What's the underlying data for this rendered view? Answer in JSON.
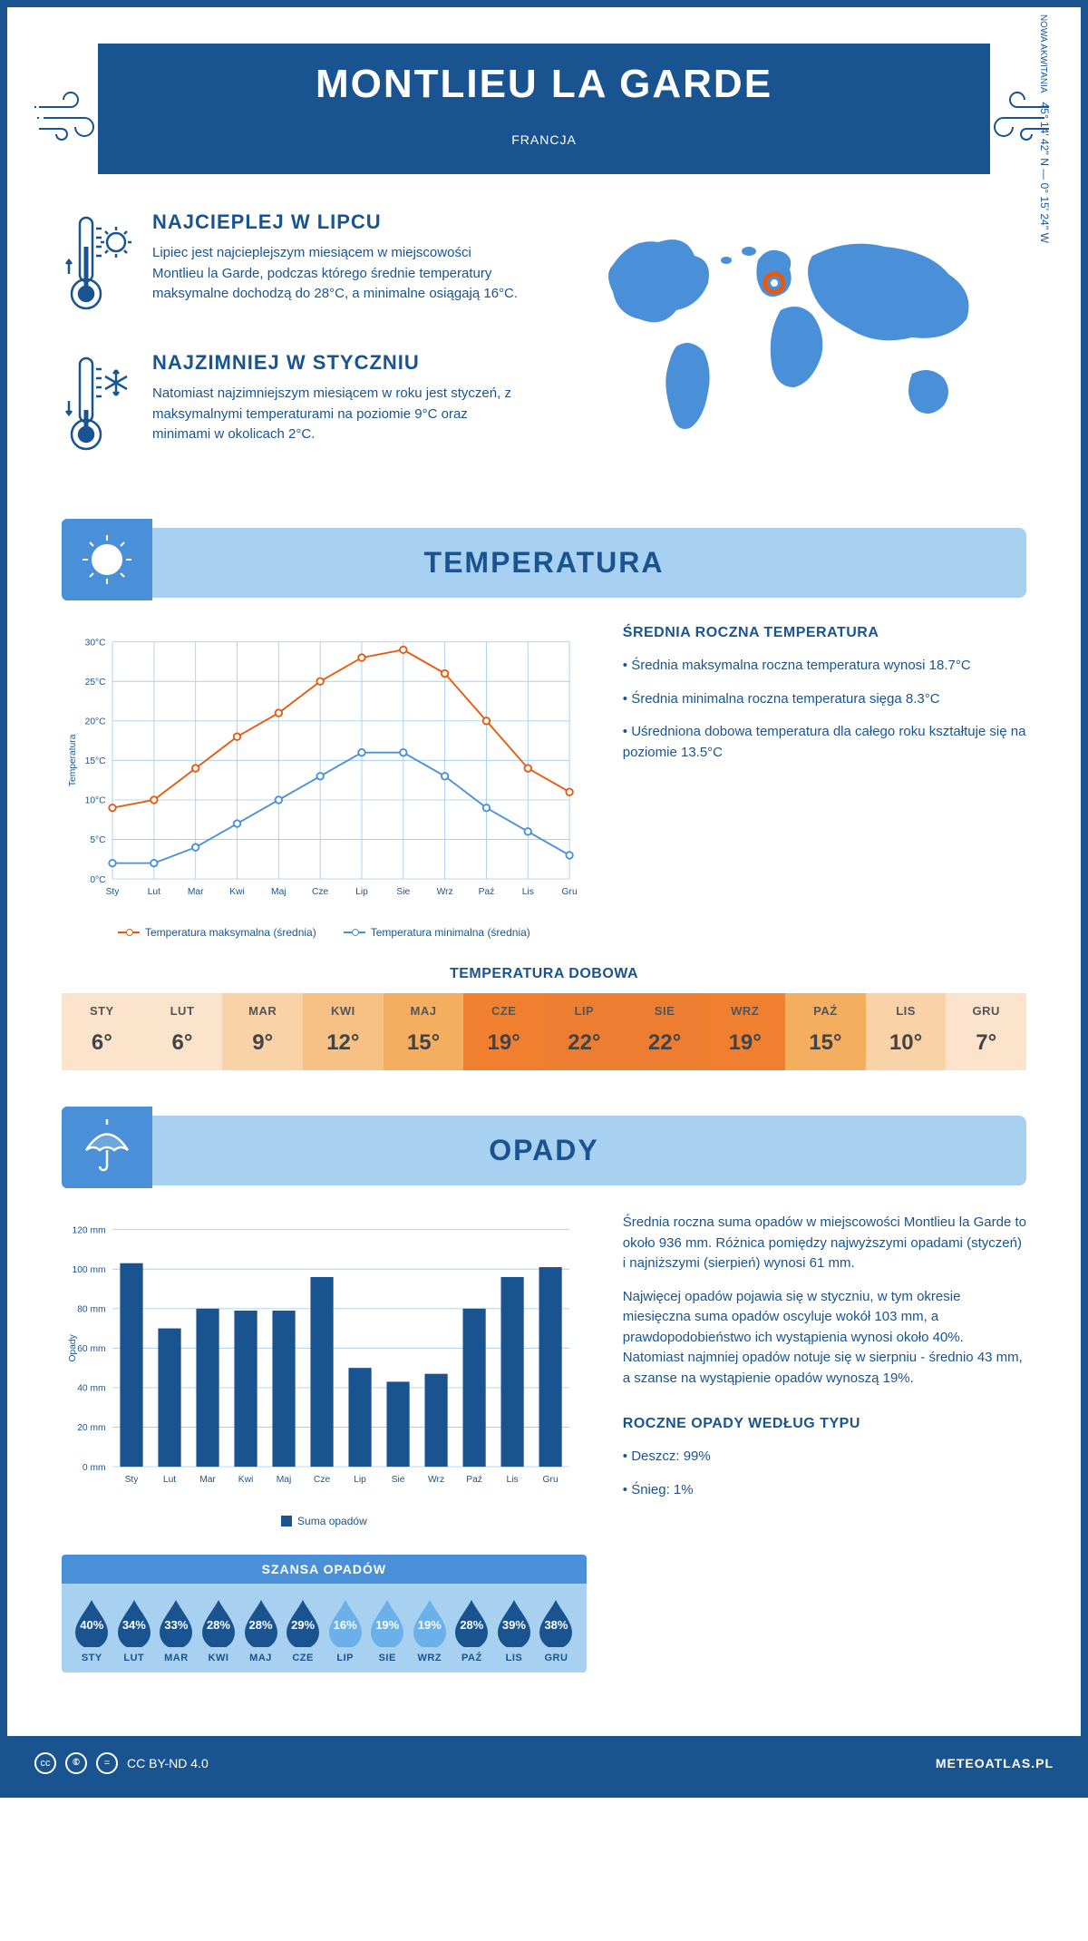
{
  "header": {
    "title": "MONTLIEU LA GARDE",
    "subtitle": "FRANCJA"
  },
  "coords": {
    "line1": "45° 14' 42'' N — 0° 15' 24'' W",
    "line2": "NOWA AKWITANIA"
  },
  "intro": {
    "hot": {
      "heading": "NAJCIEPLEJ W LIPCU",
      "text": "Lipiec jest najcieplejszym miesiącem w miejscowości Montlieu la Garde, podczas którego średnie temperatury maksymalne dochodzą do 28°C, a minimalne osiągają 16°C."
    },
    "cold": {
      "heading": "NAJZIMNIEJ W STYCZNIU",
      "text": "Natomiast najzimniejszym miesiącem w roku jest styczeń, z maksymalnymi temperaturami na poziomie 9°C oraz minimami w okolicach 2°C."
    }
  },
  "sections": {
    "temperature_title": "TEMPERATURA",
    "rain_title": "OPADY"
  },
  "months": [
    "Sty",
    "Lut",
    "Mar",
    "Kwi",
    "Maj",
    "Cze",
    "Lip",
    "Sie",
    "Wrz",
    "Paź",
    "Lis",
    "Gru"
  ],
  "months_upper": [
    "STY",
    "LUT",
    "MAR",
    "KWI",
    "MAJ",
    "CZE",
    "LIP",
    "SIE",
    "WRZ",
    "PAŹ",
    "LIS",
    "GRU"
  ],
  "temp_chart": {
    "type": "line",
    "ylabel": "Temperatura",
    "ylim": [
      0,
      30
    ],
    "ytick_step": 5,
    "ytick_labels": [
      "0°C",
      "5°C",
      "10°C",
      "15°C",
      "20°C",
      "25°C",
      "30°C"
    ],
    "grid_color": "#a8d0f0",
    "background_color": "#ffffff",
    "series": {
      "max": {
        "label": "Temperatura maksymalna (średnia)",
        "color": "#e8590c",
        "values": [
          9,
          10,
          14,
          18,
          21,
          25,
          28,
          29,
          26,
          20,
          14,
          11
        ]
      },
      "min": {
        "label": "Temperatura minimalna (średnia)",
        "color": "#4a90d9",
        "values": [
          2,
          2,
          4,
          7,
          10,
          13,
          16,
          16,
          13,
          9,
          6,
          3
        ]
      }
    }
  },
  "temp_text": {
    "heading": "ŚREDNIA ROCZNA TEMPERATURA",
    "bullet1": "• Średnia maksymalna roczna temperatura wynosi 18.7°C",
    "bullet2": "• Średnia minimalna roczna temperatura sięga 8.3°C",
    "bullet3": "• Uśredniona dobowa temperatura dla całego roku kształtuje się na poziomie 13.5°C"
  },
  "daily_temp": {
    "title": "TEMPERATURA DOBOWA",
    "values": [
      6,
      6,
      9,
      12,
      15,
      19,
      22,
      22,
      19,
      15,
      10,
      7
    ],
    "colors": [
      "#fce4cc",
      "#fce4cc",
      "#fad2a8",
      "#f7c084",
      "#f5ae60",
      "#f08030",
      "#ed7d31",
      "#ed7d31",
      "#f08030",
      "#f5ae60",
      "#fad2a8",
      "#fce4cc"
    ]
  },
  "rain_chart": {
    "type": "bar",
    "ylabel": "Opady",
    "ylim": [
      0,
      120
    ],
    "ytick_step": 20,
    "ytick_labels": [
      "0 mm",
      "20 mm",
      "40 mm",
      "60 mm",
      "80 mm",
      "100 mm",
      "120 mm"
    ],
    "bar_color": "#1a5490",
    "grid_color": "#a8d0f0",
    "legend": "Suma opadów",
    "values": [
      103,
      70,
      80,
      79,
      79,
      96,
      50,
      43,
      47,
      80,
      96,
      101
    ]
  },
  "rain_text": {
    "para1": "Średnia roczna suma opadów w miejscowości Montlieu la Garde to około 936 mm. Różnica pomiędzy najwyższymi opadami (styczeń) i najniższymi (sierpień) wynosi 61 mm.",
    "para2": "Najwięcej opadów pojawia się w styczniu, w tym okresie miesięczna suma opadów oscyluje wokół 103 mm, a prawdopodobieństwo ich wystąpienia wynosi około 40%. Natomiast najmniej opadów notuje się w sierpniu - średnio 43 mm, a szanse na wystąpienie opadów wynoszą 19%.",
    "type_heading": "ROCZNE OPADY WEDŁUG TYPU",
    "type_rain": "• Deszcz: 99%",
    "type_snow": "• Śnieg: 1%"
  },
  "rain_chance": {
    "title": "SZANSA OPADÓW",
    "values": [
      40,
      34,
      33,
      28,
      28,
      29,
      16,
      19,
      19,
      28,
      39,
      38
    ],
    "dark_color": "#1a5490",
    "light_color": "#6bb0e8",
    "light_indices": [
      6,
      7,
      8
    ]
  },
  "footer": {
    "license": "CC BY-ND 4.0",
    "site": "METEOATLAS.PL"
  }
}
